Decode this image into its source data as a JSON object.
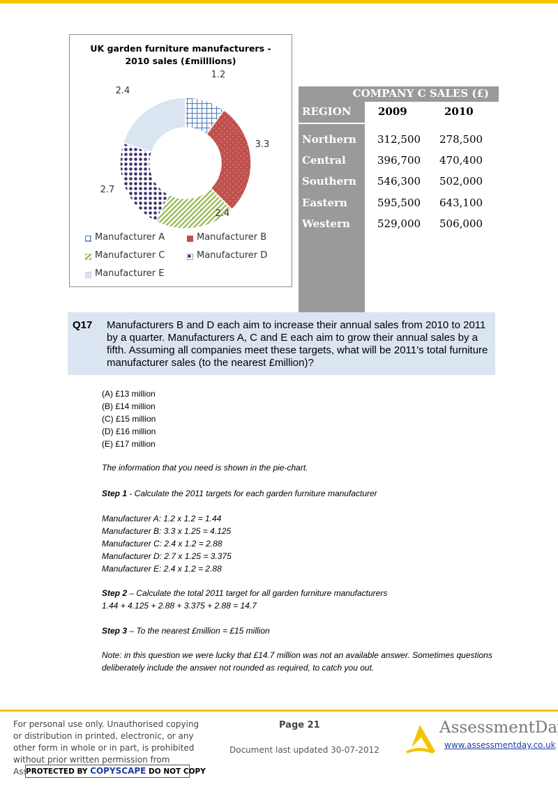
{
  "chart_data": {
    "type": "pie",
    "title_lines": [
      "UK garden furniture manufacturers -",
      "2010 sales  (£milllions)"
    ],
    "categories": [
      "Manufacturer A",
      "Manufacturer B",
      "Manufacturer C",
      "Manufacturer D",
      "Manufacturer E"
    ],
    "values": [
      1.2,
      3.3,
      2.4,
      2.7,
      2.4
    ],
    "data_labels": [
      "1.2",
      "3.3",
      "2.4",
      "2.7",
      "2.4"
    ],
    "colors": [
      "#4f81bd",
      "#c0504d",
      "#9bbb59",
      "#403170",
      "#dbe5f1"
    ],
    "legend_placement": "bottom"
  },
  "table": {
    "title": "COMPANY C SALES (£)",
    "region_header": "REGION",
    "year_headers": [
      "2009",
      "2010"
    ],
    "rows": [
      {
        "region": "Northern",
        "v2009": "312,500",
        "v2010": "278,500"
      },
      {
        "region": "Central",
        "v2009": "396,700",
        "v2010": "470,400"
      },
      {
        "region": "Southern",
        "v2009": "546,300",
        "v2010": "502,000"
      },
      {
        "region": "Eastern",
        "v2009": "595,500",
        "v2010": "643,100"
      },
      {
        "region": "Western",
        "v2009": "529,000",
        "v2010": "506,000"
      }
    ]
  },
  "question": {
    "number": "Q17",
    "text": "Manufacturers B and D each aim to increase their annual sales from 2010 to 2011 by a quarter. Manufacturers A, C and E each aim to grow their annual sales by a fifth. Assuming all companies meet these targets, what will be 2011’s total furniture manufacturer sales (to the nearest £million)?"
  },
  "options": [
    "(A) £13 million",
    "(B) £14 million",
    "(C) £15 million",
    "(D) £16 million",
    "(E) £17 million"
  ],
  "explanation": {
    "intro": "The information that you need is shown in the pie-chart.",
    "step1_label": "Step 1",
    "step1_text": " - Calculate the 2011 targets for each garden furniture manufacturer",
    "calcs": [
      "Manufacturer A: 1.2 x 1.2 = 1.44",
      "Manufacturer B: 3.3 x 1.25 = 4.125",
      "Manufacturer C: 2.4 x 1.2 = 2.88",
      "Manufacturer D: 2.7 x 1.25 = 3.375",
      "Manufacturer E: 2.4 x 1.2 = 2.88"
    ],
    "step2_label": "Step 2",
    "step2_text": " – Calculate the total 2011 target for all garden furniture manufacturers",
    "step2_sum": "1.44 + 4.125 + 2.88 + 3.375 + 2.88 = 14.7",
    "step3_label": "Step 3",
    "step3_text": " – To the nearest £million = £15 million",
    "note": "Note: in this question we were lucky that £14.7 million was not an available answer. Sometimes questions deliberately include the answer not rounded as required, to catch you out."
  },
  "footer": {
    "notice": "For personal use only. Unauthorised copying or distribution in printed, electronic, or any other form in whole or in part, is prohibited without prior written permission from AssessmentDay.",
    "copyscape_pre": "PROTECTED BY ",
    "copyscape_brand": "COPYSCAPE",
    "copyscape_post": " DO NOT COPY",
    "page": "Page 21",
    "updated": "Document last updated 30-07-2012",
    "brand_name": "AssessmentDay",
    "brand_url": "www.assessmentday.co.uk"
  },
  "colors": {
    "accent": "#f5c400",
    "question_bg": "#dbe5f1",
    "table_header_bg": "#9a9a9a"
  }
}
